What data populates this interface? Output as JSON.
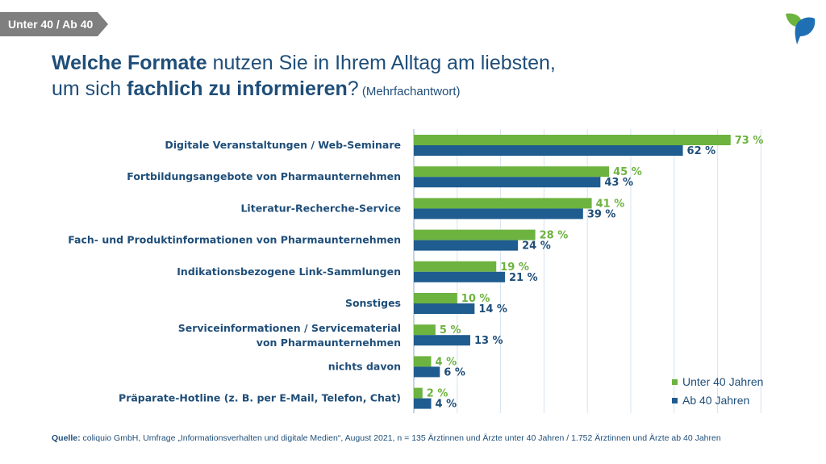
{
  "tag_label": "Unter 40 / Ab 40",
  "title": {
    "part1_bold": "Welche Formate",
    "part2": " nutzen Sie in Ihrem Alltag am liebsten,",
    "part3": "um sich ",
    "part4_bold": "fachlich zu informieren",
    "part5": "?",
    "note": " (Mehrfachantwort)"
  },
  "source": {
    "label": "Quelle:",
    "text": " coliquio GmbH, Umfrage „Informationsverhalten und digitale Medien“, August 2021, n = 135 Ärztinnen und Ärzte unter 40 Jahren / 1.752 Ärztinnen und Ärzte ab 40 Jahren"
  },
  "colors": {
    "green": "#6db33f",
    "blue": "#1f5c8f",
    "navy": "#1f4e79",
    "grid": "#d6e4f0",
    "tag": "#7f7f7f"
  },
  "icons": [
    "leaf-logo-icon"
  ],
  "chart_data": {
    "type": "bar",
    "orientation": "horizontal",
    "unit": "%",
    "xlim": [
      0,
      80
    ],
    "grid": true,
    "legend_position": "bottom-right",
    "categories": [
      [
        "Digitale Veranstaltungen / Web-Seminare"
      ],
      [
        "Fortbildungsangebote von Pharmaunternehmen"
      ],
      [
        "Literatur-Recherche-Service"
      ],
      [
        "Fach- und Produktinformationen von Pharmaunternehmen"
      ],
      [
        "Indikationsbezogene Link-Sammlungen"
      ],
      [
        "Sonstiges"
      ],
      [
        "Serviceinformationen / Servicematerial",
        "von Pharmaunternehmen"
      ],
      [
        "nichts davon"
      ],
      [
        "Präparate-Hotline (z. B. per E-Mail, Telefon, Chat)"
      ]
    ],
    "series": [
      {
        "name": "Unter 40 Jahren",
        "color": "#6db33f",
        "values": [
          73,
          45,
          41,
          28,
          19,
          10,
          5,
          4,
          2
        ]
      },
      {
        "name": "Ab 40 Jahren",
        "color": "#1f5c8f",
        "values": [
          62,
          43,
          39,
          24,
          21,
          14,
          13,
          6,
          4
        ]
      }
    ]
  }
}
